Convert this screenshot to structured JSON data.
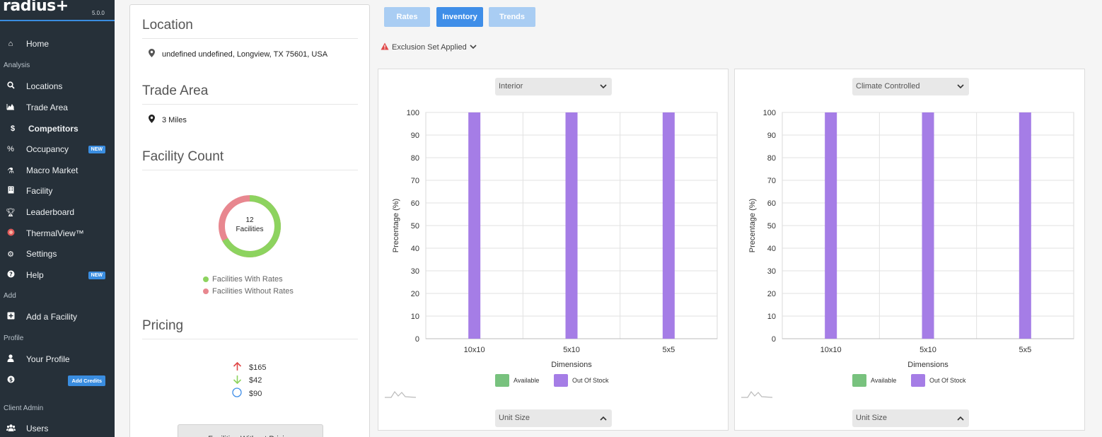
{
  "app": {
    "brand": "radius+",
    "version": "5.0.0"
  },
  "sidebar": {
    "home": "Home",
    "analysis_label": "Analysis",
    "items": [
      {
        "label": "Locations"
      },
      {
        "label": "Trade Area"
      },
      {
        "label": "Competitors"
      },
      {
        "label": "Occupancy",
        "badge": "NEW"
      },
      {
        "label": "Macro Market"
      },
      {
        "label": "Facility"
      },
      {
        "label": "Leaderboard"
      },
      {
        "label": "ThermalView™"
      },
      {
        "label": "Settings"
      },
      {
        "label": "Help",
        "badge": "NEW"
      }
    ],
    "add_label": "Add",
    "add_facility": "Add a Facility",
    "profile_label": "Profile",
    "your_profile": "Your Profile",
    "add_credits": "Add Credits",
    "client_admin_label": "Client Admin",
    "users": "Users"
  },
  "summary": {
    "location_title": "Location",
    "address": "undefined undefined, Longview, TX 75601, USA",
    "trade_area_title": "Trade Area",
    "trade_area_value": "3 Miles",
    "facility_count_title": "Facility Count",
    "facility_count": "12",
    "facility_count_unit": "Facilities",
    "with_rates_label": "Facilities With Rates",
    "without_rates_label": "Facilities Without Rates",
    "with_rates_fraction": 0.67,
    "pricing_title": "Pricing",
    "price_high": "$165",
    "price_low": "$42",
    "price_avg": "$90",
    "facilities_without_pricing": "Facilities Without Pricing",
    "colors": {
      "with_rates": "#8dd35f",
      "without_rates": "#e8878f"
    }
  },
  "tabs": {
    "rates": "Rates",
    "inventory": "Inventory",
    "trends": "Trends"
  },
  "exclusion": {
    "label": "Exclusion Set Applied"
  },
  "charts": {
    "interior_select": "Interior",
    "climate_select": "Climate Controlled",
    "unit_size_select": "Unit Size"
  },
  "chart_data": [
    {
      "type": "bar",
      "filter": "Interior",
      "categories": [
        "10x10",
        "5x10",
        "5x5"
      ],
      "series": [
        {
          "name": "Available",
          "values": [
            0,
            0,
            0
          ],
          "color": "#78c27e"
        },
        {
          "name": "Out Of Stock",
          "values": [
            100,
            100,
            100
          ],
          "color": "#a57de6"
        }
      ],
      "xlabel": "Dimensions",
      "ylabel": "Precentage (%)",
      "ylim": [
        0,
        100
      ],
      "yticks": [
        0,
        10,
        20,
        30,
        40,
        50,
        60,
        70,
        80,
        90,
        100
      ],
      "grid": true,
      "legend": "bottom"
    },
    {
      "type": "bar",
      "filter": "Climate Controlled",
      "categories": [
        "10x10",
        "5x10",
        "5x5"
      ],
      "series": [
        {
          "name": "Available",
          "values": [
            0,
            0,
            0
          ],
          "color": "#78c27e"
        },
        {
          "name": "Out Of Stock",
          "values": [
            100,
            100,
            100
          ],
          "color": "#a57de6"
        }
      ],
      "xlabel": "Dimensions",
      "ylabel": "Precentage (%)",
      "ylim": [
        0,
        100
      ],
      "yticks": [
        0,
        10,
        20,
        30,
        40,
        50,
        60,
        70,
        80,
        90,
        100
      ],
      "grid": true,
      "legend": "bottom"
    }
  ]
}
